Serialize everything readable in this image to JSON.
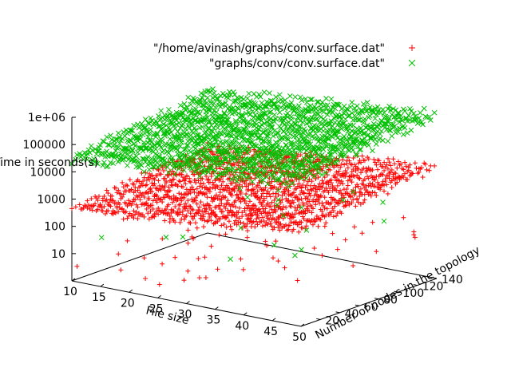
{
  "chart_data": {
    "type": "scatter",
    "subtype": "3d-surface-points",
    "title": "",
    "xlabel": "File size",
    "ylabel": "Number of nodes in the topology",
    "zlabel": "Time in seconds(s)",
    "xlim": [
      10,
      50
    ],
    "ylim": [
      0,
      140
    ],
    "zlim": [
      1,
      1000000
    ],
    "zscale": "log",
    "x_ticks": [
      "10",
      "15",
      "20",
      "25",
      "30",
      "35",
      "40",
      "45",
      "50"
    ],
    "y_ticks": [
      "20",
      "40",
      "60",
      "80",
      "100",
      "120",
      "140"
    ],
    "z_ticks": [
      "10",
      "100",
      "1000",
      "10000",
      "100000",
      "1e+06"
    ],
    "legend_position": "top-right",
    "series": [
      {
        "name": "\"/home/avinash/graphs/conv.surface.dat\"",
        "marker": "+",
        "color": "#ff0000",
        "x_range": [
          10,
          50
        ],
        "y_range": [
          0,
          140
        ],
        "z_typical": [
          300,
          6000
        ],
        "z_min": 1
      },
      {
        "name": "\"graphs/conv/conv.surface.dat\"",
        "marker": "x",
        "color": "#00c000",
        "x_range": [
          10,
          50
        ],
        "y_range": [
          0,
          140
        ],
        "z_typical": [
          20000,
          1000000
        ],
        "z_min": 1
      }
    ]
  }
}
